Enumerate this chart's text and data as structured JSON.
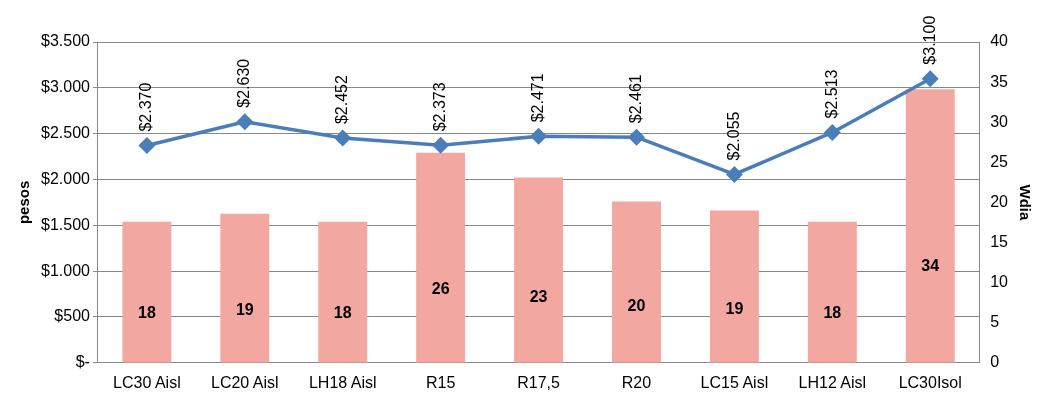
{
  "chart_data": {
    "type": "bar",
    "categories": [
      "LC30 Aisl",
      "LC20 Aisl",
      "LH18 Aisl",
      "R15",
      "R17,5",
      "R20",
      "LC15 Aisl",
      "LH12 Aisl",
      "LC30Isol"
    ],
    "series": [
      {
        "axis": "y2",
        "color": "#f2a8a0",
        "values": [
          17.6,
          18.6,
          17.6,
          26.2,
          23.1,
          20.1,
          19.0,
          17.6,
          34.1
        ],
        "value_labels": [
          "18",
          "19",
          "18",
          "26",
          "23",
          "20",
          "19",
          "18",
          "34"
        ]
      },
      {
        "type": "line",
        "axis": "y",
        "color": "#4a7ebb",
        "marker": "diamond",
        "values": [
          2370,
          2630,
          2452,
          2373,
          2471,
          2461,
          2055,
          2513,
          3100
        ],
        "value_labels": [
          "$2.370",
          "$2.630",
          "$2.452",
          "$2.373",
          "$2.471",
          "$2.461",
          "$2.055",
          "$2.513",
          "$3.100"
        ]
      }
    ],
    "ylabel": "pesos",
    "y2label": "Wdia",
    "ylim": [
      0,
      3500
    ],
    "yticks": [
      {
        "value": 0,
        "label": "$-"
      },
      {
        "value": 500,
        "label": "$500"
      },
      {
        "value": 1000,
        "label": "$1.000"
      },
      {
        "value": 1500,
        "label": "$1.500"
      },
      {
        "value": 2000,
        "label": "$2.000"
      },
      {
        "value": 2500,
        "label": "$2.500"
      },
      {
        "value": 3000,
        "label": "$3.000"
      },
      {
        "value": 3500,
        "label": "$3.500"
      }
    ],
    "y2lim": [
      0,
      40
    ],
    "y2ticks": [
      0,
      5,
      10,
      15,
      20,
      25,
      30,
      35,
      40
    ],
    "grid": "y",
    "legend": false
  }
}
